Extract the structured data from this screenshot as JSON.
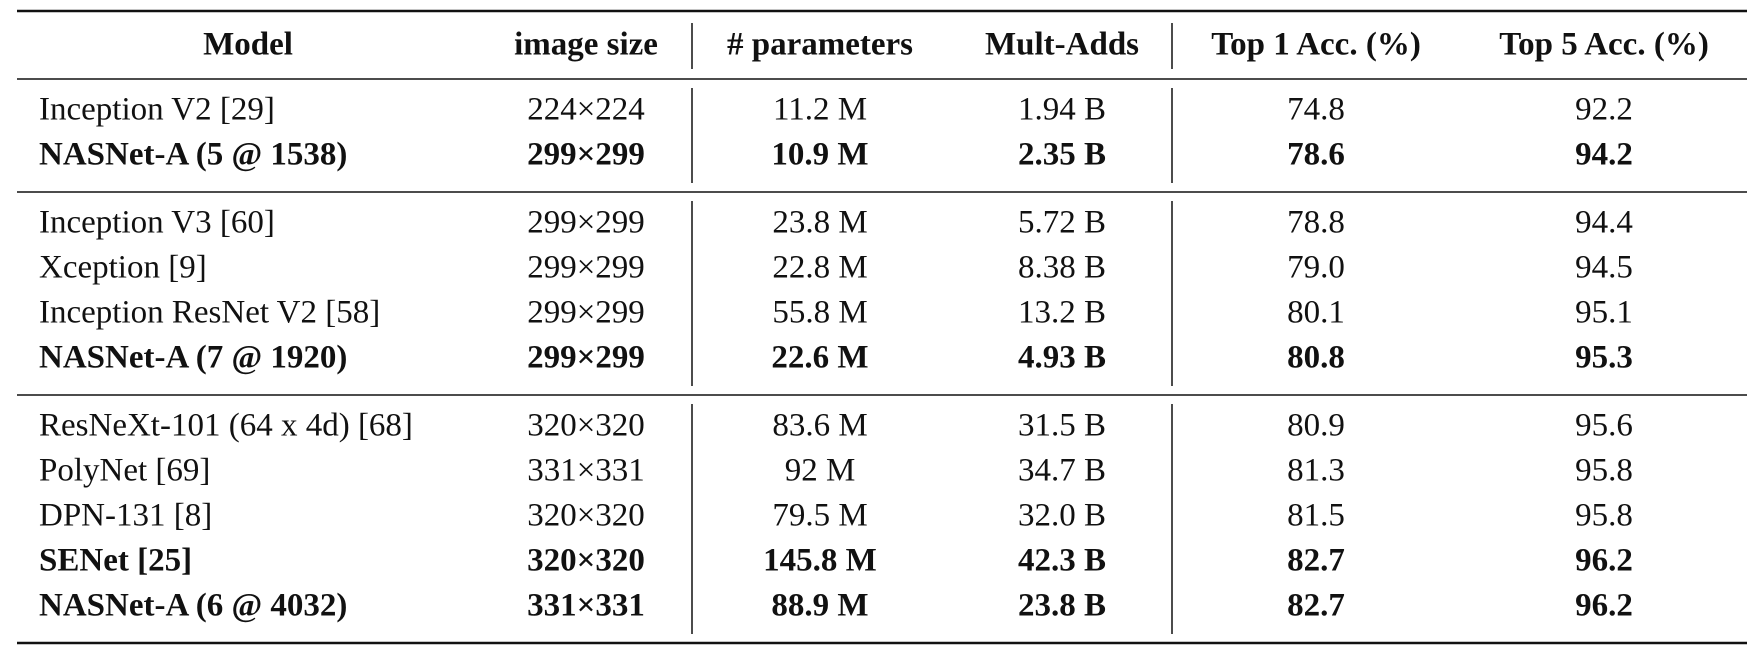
{
  "table": {
    "header": [
      "Model",
      "image size",
      "# parameters",
      "Mult-Adds",
      "Top 1 Acc. (%)",
      "Top 5 Acc. (%)"
    ],
    "groups": [
      {
        "rows": [
          {
            "bold": false,
            "cells": [
              "Inception V2 [29]",
              "224×224",
              "11.2 M",
              "1.94 B",
              "74.8",
              "92.2"
            ]
          },
          {
            "bold": true,
            "cells": [
              "NASNet-A (5 @ 1538)",
              "299×299",
              "10.9 M",
              "2.35 B",
              "78.6",
              "94.2"
            ]
          }
        ]
      },
      {
        "rows": [
          {
            "bold": false,
            "cells": [
              "Inception V3 [60]",
              "299×299",
              "23.8 M",
              "5.72 B",
              "78.8",
              "94.4"
            ]
          },
          {
            "bold": false,
            "cells": [
              "Xception [9]",
              "299×299",
              "22.8 M",
              "8.38 B",
              "79.0",
              "94.5"
            ]
          },
          {
            "bold": false,
            "cells": [
              "Inception ResNet V2 [58]",
              "299×299",
              "55.8 M",
              "13.2 B",
              "80.1",
              "95.1"
            ]
          },
          {
            "bold": true,
            "cells": [
              "NASNet-A (7 @ 1920)",
              "299×299",
              "22.6 M",
              "4.93 B",
              "80.8",
              "95.3"
            ]
          }
        ]
      },
      {
        "rows": [
          {
            "bold": false,
            "cells": [
              "ResNeXt-101 (64 x 4d) [68]",
              "320×320",
              "83.6 M",
              "31.5 B",
              "80.9",
              "95.6"
            ]
          },
          {
            "bold": false,
            "cells": [
              "PolyNet [69]",
              "331×331",
              "92 M",
              "34.7 B",
              "81.3",
              "95.8"
            ]
          },
          {
            "bold": false,
            "cells": [
              "DPN-131 [8]",
              "320×320",
              "79.5 M",
              "32.0 B",
              "81.5",
              "95.8"
            ]
          },
          {
            "bold": true,
            "cells": [
              "SENet [25]",
              "320×320",
              "145.8 M",
              "42.3 B",
              "82.7",
              "96.2"
            ]
          },
          {
            "bold": true,
            "cells": [
              "NASNet-A (6 @ 4032)",
              "331×331",
              "88.9 M",
              "23.8 B",
              "82.7",
              "96.2"
            ]
          }
        ]
      }
    ]
  }
}
